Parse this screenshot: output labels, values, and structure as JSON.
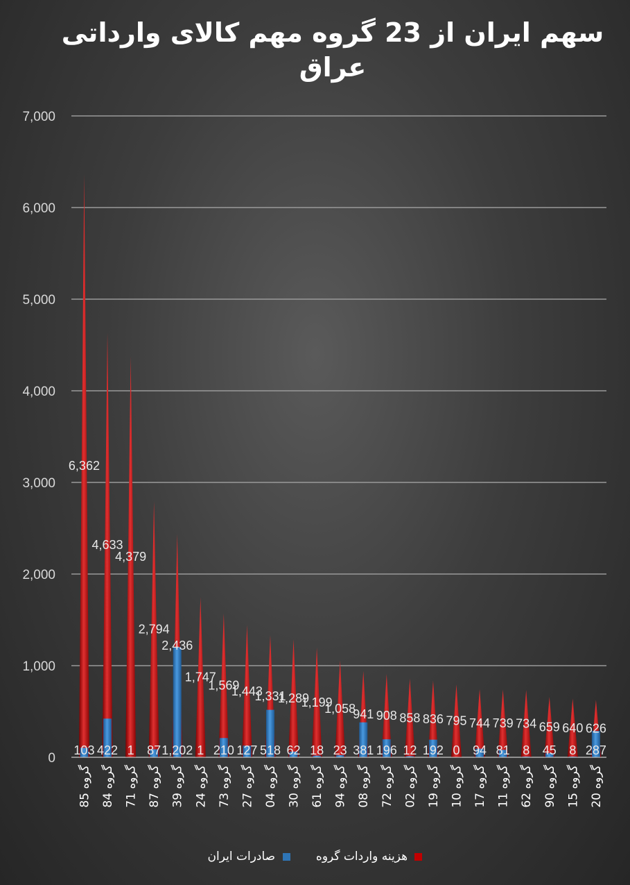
{
  "chart_data": {
    "type": "bar",
    "title": "سهم ایران از 23 گروه مهم کالای وارداتی عراق",
    "ylim": [
      0,
      7000
    ],
    "yticks": [
      "0",
      "1,000",
      "2,000",
      "3,000",
      "4,000",
      "5,000",
      "6,000",
      "7,000"
    ],
    "grid": true,
    "legend_position": "bottom",
    "categories": [
      "گروه 85",
      "گروه 84",
      "گروه 71",
      "گروه 87",
      "گروه 39",
      "گروه 24",
      "گروه 73",
      "گروه 27",
      "گروه 04",
      "گروه 30",
      "گروه 61",
      "گروه 94",
      "گروه 08",
      "گروه 72",
      "گروه 02",
      "گروه 19",
      "گروه 10",
      "گروه 17",
      "گروه 11",
      "گروه 62",
      "گروه 90",
      "گروه 15",
      "گروه 20"
    ],
    "series": [
      {
        "name": "هزینه واردات گروه",
        "color": "#c00000",
        "values": [
          6362,
          4633,
          4379,
          2794,
          2436,
          1747,
          1569,
          1443,
          1331,
          1289,
          1199,
          1058,
          941,
          908,
          858,
          836,
          795,
          744,
          739,
          734,
          659,
          640,
          626
        ],
        "labels": [
          "6,362",
          "4,633",
          "4,379",
          "2,794",
          "2,436",
          "1,747",
          "1,569",
          "1,443",
          "1,331",
          "1,289",
          "1,199",
          "1,058",
          "941",
          "908",
          "858",
          "836",
          "795",
          "744",
          "739",
          "734",
          "659",
          "640",
          "626"
        ]
      },
      {
        "name": "صادرات ایران",
        "color": "#2e75b6",
        "values": [
          103,
          422,
          1,
          87,
          1202,
          1,
          210,
          127,
          518,
          62,
          18,
          23,
          381,
          196,
          12,
          192,
          0,
          94,
          81,
          8,
          45,
          8,
          287
        ],
        "labels": [
          "103",
          "422",
          "1",
          "87",
          "1,202",
          "1",
          "210",
          "127",
          "518",
          "62",
          "18",
          "23",
          "381",
          "196",
          "12",
          "192",
          "0",
          "94",
          "81",
          "8",
          "45",
          "8",
          "287"
        ]
      }
    ]
  }
}
